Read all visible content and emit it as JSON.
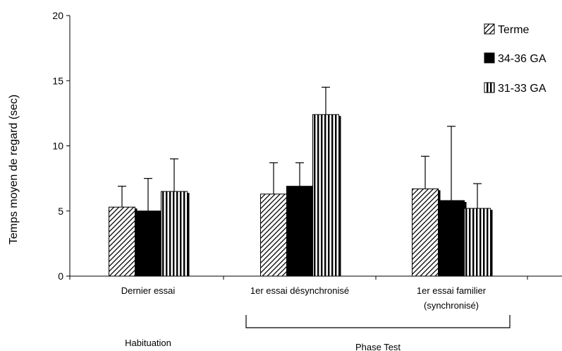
{
  "chart_data": {
    "type": "bar",
    "ylabel": "Temps moyen de regard (sec)",
    "ylim": [
      0,
      20
    ],
    "yticks": [
      0,
      5,
      10,
      15,
      20
    ],
    "categories": [
      [
        "Dernier essai"
      ],
      [
        "1er essai désynchronisé"
      ],
      [
        "1er essai familier",
        "(synchronisé)"
      ]
    ],
    "series": [
      {
        "name": "Terme",
        "pattern": "diagonal-hatch",
        "values": [
          5.3,
          6.3,
          6.7
        ],
        "errors": [
          1.6,
          2.4,
          2.5
        ]
      },
      {
        "name": "34-36 GA",
        "pattern": "solid-black",
        "values": [
          5.0,
          6.9,
          5.8
        ],
        "errors": [
          2.5,
          1.8,
          5.7
        ]
      },
      {
        "name": "31-33 GA",
        "pattern": "vertical-stripes",
        "values": [
          6.5,
          12.4,
          5.2
        ],
        "errors": [
          2.5,
          2.1,
          1.9
        ]
      }
    ],
    "legend_position": "top-right",
    "grid": false,
    "group_labels": [
      {
        "label": "Habituation",
        "span": [
          0
        ]
      },
      {
        "label": "Phase Test",
        "span": [
          1,
          2
        ]
      }
    ]
  }
}
